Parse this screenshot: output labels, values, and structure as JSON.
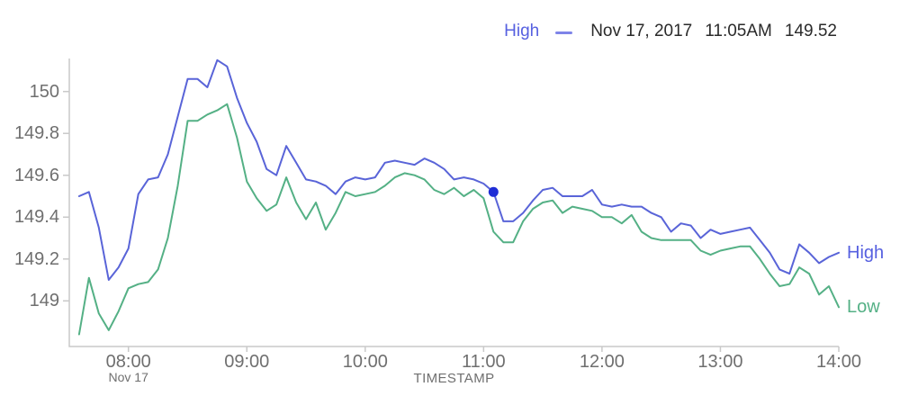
{
  "legend": {
    "series_label": "High",
    "date": "Nov 17, 2017",
    "time": "11:05AM",
    "value": "149.52"
  },
  "axis": {
    "x_title": "TIMESTAMP",
    "x_date_label": "Nov 17"
  },
  "end_labels": {
    "high": "High",
    "low": "Low"
  },
  "colors": {
    "high_line": "#5964d8",
    "low_line": "#54b085",
    "marker_dot": "#1f2dd6",
    "axis_line": "#c9c9c9",
    "tick_text": "#6f6f6f",
    "legend_info_text": "#2a2a2a",
    "legend_series_text": "#5660e0"
  },
  "chart_data": {
    "type": "line",
    "title": "",
    "xlabel": "TIMESTAMP",
    "ylabel": "",
    "grid": false,
    "legend_position": "top-right",
    "x_ticks": [
      "08:00",
      "09:00",
      "10:00",
      "11:00",
      "12:00",
      "13:00",
      "14:00"
    ],
    "x_tick_sub": [
      "Nov 17",
      "",
      "",
      "",
      "",
      "",
      ""
    ],
    "y_ticks": [
      150,
      149.8,
      149.6,
      149.4,
      149.2,
      149
    ],
    "y_tick_labels": [
      "150",
      "149.8",
      "149.6",
      "149.4",
      "149.2",
      "149"
    ],
    "x_range": [
      "07:35",
      "14:00"
    ],
    "y_range": [
      148.78,
      150.16
    ],
    "times": [
      "07:35",
      "07:40",
      "07:45",
      "07:50",
      "07:55",
      "08:00",
      "08:05",
      "08:10",
      "08:15",
      "08:20",
      "08:25",
      "08:30",
      "08:35",
      "08:40",
      "08:45",
      "08:50",
      "08:55",
      "09:00",
      "09:05",
      "09:10",
      "09:15",
      "09:20",
      "09:25",
      "09:30",
      "09:35",
      "09:40",
      "09:45",
      "09:50",
      "09:55",
      "10:00",
      "10:05",
      "10:10",
      "10:15",
      "10:20",
      "10:25",
      "10:30",
      "10:35",
      "10:40",
      "10:45",
      "10:50",
      "10:55",
      "11:00",
      "11:05",
      "11:10",
      "11:15",
      "11:20",
      "11:25",
      "11:30",
      "11:35",
      "11:40",
      "11:45",
      "11:50",
      "11:55",
      "12:00",
      "12:05",
      "12:10",
      "12:15",
      "12:20",
      "12:25",
      "12:30",
      "12:35",
      "12:40",
      "12:45",
      "12:50",
      "12:55",
      "13:00",
      "13:05",
      "13:10",
      "13:15",
      "13:20",
      "13:25",
      "13:30",
      "13:35",
      "13:40",
      "13:45",
      "13:50",
      "13:55",
      "14:00"
    ],
    "series": [
      {
        "name": "High",
        "color": "#5964d8",
        "values": [
          149.5,
          149.52,
          149.35,
          149.1,
          149.16,
          149.25,
          149.51,
          149.58,
          149.59,
          149.7,
          149.88,
          150.06,
          150.06,
          150.02,
          150.15,
          150.12,
          149.97,
          149.85,
          149.76,
          149.63,
          149.6,
          149.74,
          149.66,
          149.58,
          149.57,
          149.55,
          149.51,
          149.57,
          149.59,
          149.58,
          149.59,
          149.66,
          149.67,
          149.66,
          149.65,
          149.68,
          149.66,
          149.63,
          149.58,
          149.59,
          149.58,
          149.56,
          149.52,
          149.38,
          149.38,
          149.42,
          149.48,
          149.53,
          149.54,
          149.5,
          149.5,
          149.5,
          149.53,
          149.46,
          149.45,
          149.46,
          149.45,
          149.45,
          149.42,
          149.4,
          149.33,
          149.37,
          149.36,
          149.3,
          149.34,
          149.32,
          149.33,
          149.34,
          149.35,
          149.29,
          149.23,
          149.15,
          149.13,
          149.27,
          149.23,
          149.18,
          149.21,
          149.23
        ]
      },
      {
        "name": "Low",
        "color": "#54b085",
        "values": [
          148.84,
          149.11,
          148.94,
          148.86,
          148.95,
          149.06,
          149.08,
          149.09,
          149.15,
          149.3,
          149.55,
          149.86,
          149.86,
          149.89,
          149.91,
          149.94,
          149.78,
          149.57,
          149.49,
          149.43,
          149.46,
          149.59,
          149.47,
          149.39,
          149.47,
          149.34,
          149.42,
          149.52,
          149.5,
          149.51,
          149.52,
          149.55,
          149.59,
          149.61,
          149.6,
          149.58,
          149.53,
          149.51,
          149.54,
          149.5,
          149.53,
          149.49,
          149.33,
          149.28,
          149.28,
          149.38,
          149.44,
          149.47,
          149.48,
          149.42,
          149.45,
          149.44,
          149.43,
          149.4,
          149.4,
          149.37,
          149.41,
          149.33,
          149.3,
          149.29,
          149.29,
          149.29,
          149.29,
          149.24,
          149.22,
          149.24,
          149.25,
          149.26,
          149.26,
          149.2,
          149.13,
          149.07,
          149.08,
          149.16,
          149.13,
          149.03,
          149.07,
          148.97
        ]
      }
    ],
    "marker": {
      "series": "High",
      "time": "11:05",
      "value": 149.52,
      "label": "Nov 17, 2017 11:05AM 149.52"
    }
  }
}
